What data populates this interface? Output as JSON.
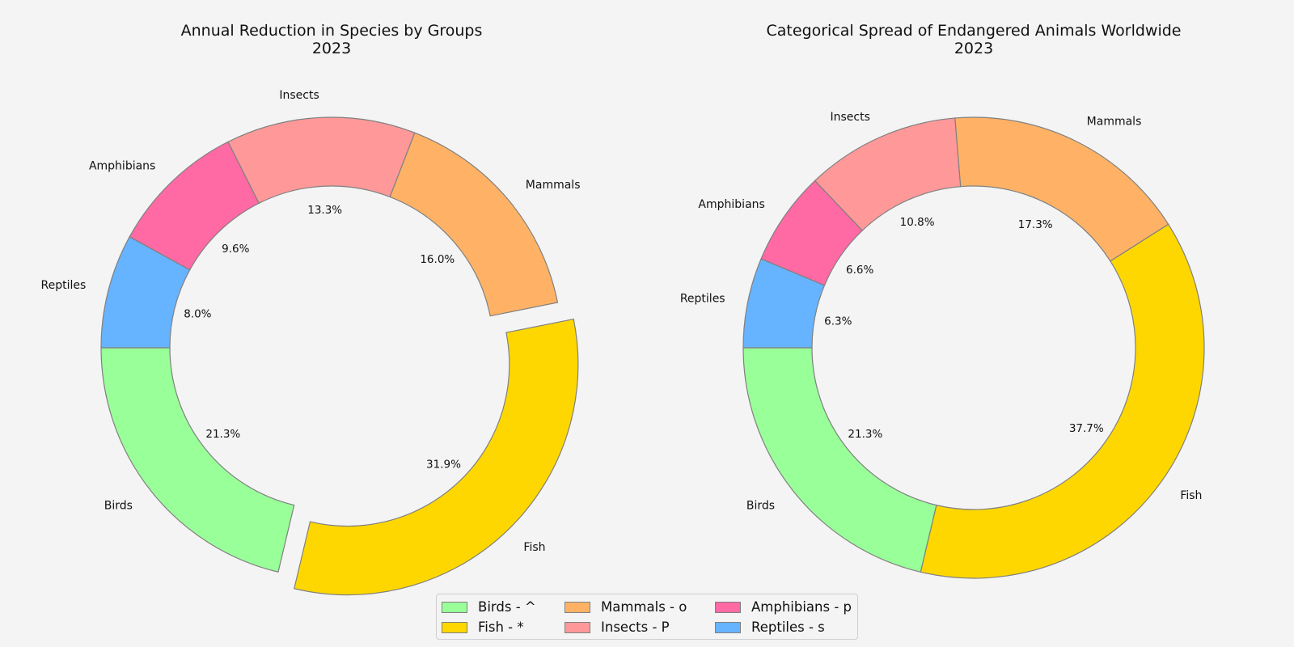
{
  "chart_data": [
    {
      "type": "pie",
      "subtype": "donut",
      "title": "Annual Reduction in Species by Groups\n2023",
      "categories": [
        "Birds",
        "Fish",
        "Mammals",
        "Insects",
        "Amphibians",
        "Reptiles"
      ],
      "values": [
        21.3,
        31.9,
        16.0,
        13.3,
        9.6,
        8.0
      ],
      "value_labels": [
        "21.3%",
        "31.9%",
        "16.0%",
        "13.3%",
        "9.6%",
        "8.0%"
      ],
      "exploded": [
        "Fish"
      ],
      "colors": [
        "#99ff99",
        "#ffd700",
        "#ffb266",
        "#ff9999",
        "#ff69a4",
        "#66b3ff"
      ],
      "edge_color": "#808080"
    },
    {
      "type": "pie",
      "subtype": "donut",
      "title": "Categorical Spread of Endangered Animals Worldwide\n2023",
      "categories": [
        "Birds",
        "Fish",
        "Mammals",
        "Insects",
        "Amphibians",
        "Reptiles"
      ],
      "values": [
        21.3,
        37.7,
        17.3,
        10.8,
        6.6,
        6.3
      ],
      "value_labels": [
        "21.3%",
        "37.7%",
        "17.3%",
        "10.8%",
        "6.6%",
        "6.3%"
      ],
      "exploded": [],
      "colors": [
        "#99ff99",
        "#ffd700",
        "#ffb266",
        "#ff9999",
        "#ff69a4",
        "#66b3ff"
      ],
      "edge_color": "#808080"
    }
  ],
  "legend": {
    "placement": "bottom-center",
    "items": [
      {
        "label": "Birds - ^",
        "color": "#99ff99"
      },
      {
        "label": "Mammals - o",
        "color": "#ffb266"
      },
      {
        "label": "Amphibians - p",
        "color": "#ff69a4"
      },
      {
        "label": "Fish - *",
        "color": "#ffd700"
      },
      {
        "label": "Insects - P",
        "color": "#ff9999"
      },
      {
        "label": "Reptiles - s",
        "color": "#66b3ff"
      }
    ]
  }
}
